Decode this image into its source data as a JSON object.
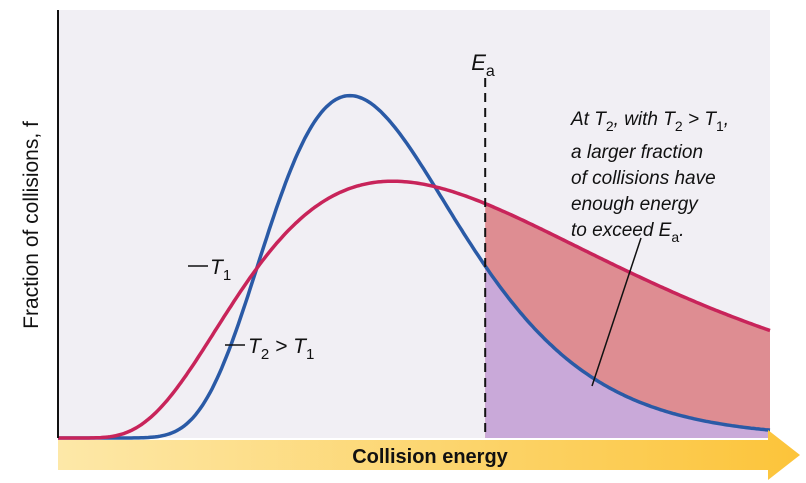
{
  "chart_data": {
    "type": "line",
    "title": "",
    "xlabel": "Collision energy",
    "ylabel": "Fraction of collisions, f",
    "series": [
      {
        "name": "T1",
        "label_text": {
          "main": "T",
          "sub": "1",
          "tail": ""
        },
        "color": "#2a5aa6",
        "peak_x": 0.41,
        "peak_y": 0.8,
        "width": 0.16,
        "skew": 0.85
      },
      {
        "name": "T2 > T1",
        "label_text": {
          "main": "T",
          "sub": "2",
          "tail": " > T",
          "tailsub": "1"
        },
        "color": "#c8245a",
        "peak_x": 0.47,
        "peak_y": 0.6,
        "width": 0.26,
        "skew": 1.0
      }
    ],
    "threshold": {
      "label_main": "E",
      "label_sub": "a",
      "x": 0.6
    },
    "annotation": {
      "lines": [
        {
          "parts": [
            [
              "At ",
              false
            ],
            [
              "T",
              false
            ],
            [
              "2",
              true
            ],
            [
              ", with ",
              false
            ],
            [
              "T",
              false
            ],
            [
              "2",
              true
            ],
            [
              " > ",
              false
            ],
            [
              "T",
              false
            ],
            [
              "1",
              true
            ],
            [
              ",",
              false
            ]
          ]
        },
        {
          "parts": [
            [
              "a larger fraction",
              false
            ]
          ]
        },
        {
          "parts": [
            [
              "of collisions have",
              false
            ]
          ]
        },
        {
          "parts": [
            [
              "enough energy",
              false
            ]
          ]
        },
        {
          "parts": [
            [
              "to exceed E",
              false
            ],
            [
              "a",
              true
            ],
            [
              ".",
              false
            ]
          ]
        }
      ]
    },
    "shading": {
      "t2_fill": "#de8d92",
      "t1_fill": "#c9a9d9"
    },
    "background": "#f1eff4",
    "arrow_colors": [
      "#fde8a8",
      "#fcc43a"
    ]
  }
}
